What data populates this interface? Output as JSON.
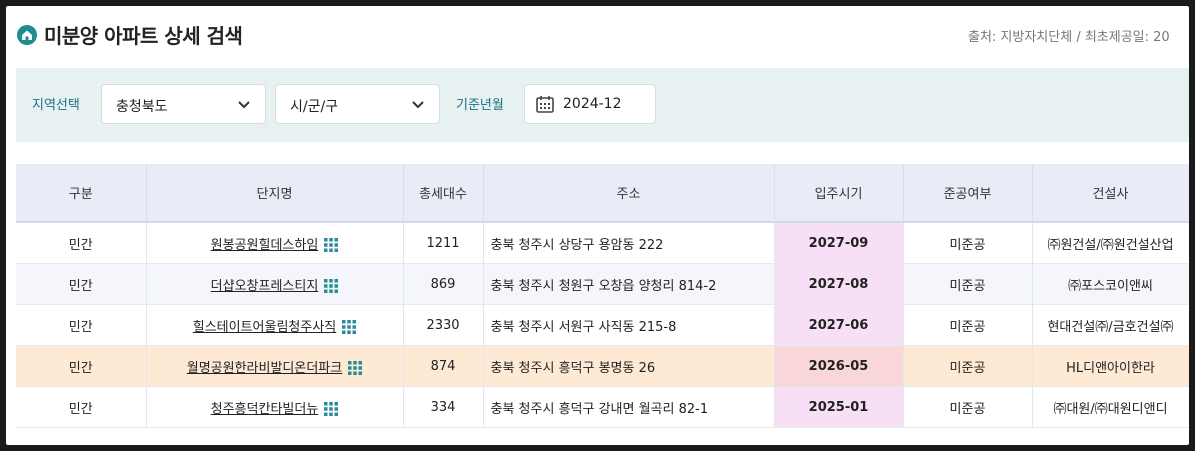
{
  "header": {
    "title": "미분양 아파트 상세 검색",
    "source": "출처: 지방자치단체 / 최초제공일: 20"
  },
  "filters": {
    "region_label": "지역선택",
    "province": "충청북도",
    "district": "시/군/구",
    "date_label": "기준년월",
    "date": "2024-12"
  },
  "table": {
    "columns": [
      "구분",
      "단지명",
      "총세대수",
      "주소",
      "입주시기",
      "준공여부",
      "건설사"
    ],
    "rows": [
      {
        "type": "민간",
        "name": "원봉공원힐데스하임",
        "units": "1211",
        "address": "충북 청주시 상당구 용암동 222",
        "move_in": "2027-09",
        "status": "미준공",
        "builder": "㈜원건설/㈜원건설산업"
      },
      {
        "type": "민간",
        "name": "더샵오창프레스티지",
        "units": "869",
        "address": "충북 청주시 청원구 오창읍 양청리 814-2",
        "move_in": "2027-08",
        "status": "미준공",
        "builder": "㈜포스코이앤씨"
      },
      {
        "type": "민간",
        "name": "힐스테이트어울림청주사직",
        "units": "2330",
        "address": "충북 청주시 서원구 사직동 215-8",
        "move_in": "2027-06",
        "status": "미준공",
        "builder": "현대건설㈜/금호건설㈜"
      },
      {
        "type": "민간",
        "name": "월명공원한라비발디온더파크",
        "units": "874",
        "address": "충북 청주시 흥덕구 봉명동 26",
        "move_in": "2026-05",
        "status": "미준공",
        "builder": "HL디앤아이한라"
      },
      {
        "type": "민간",
        "name": "청주흥덕칸타빌더뉴",
        "units": "334",
        "address": "충북 청주시 흥덕구 강내면 월곡리 82-1",
        "move_in": "2025-01",
        "status": "미준공",
        "builder": "㈜대원/㈜대원디앤디"
      }
    ]
  },
  "colors": {
    "accent": "#1f8d8d",
    "highlight_row": "#fde9d4",
    "date_cell": "#f7e0f6"
  }
}
